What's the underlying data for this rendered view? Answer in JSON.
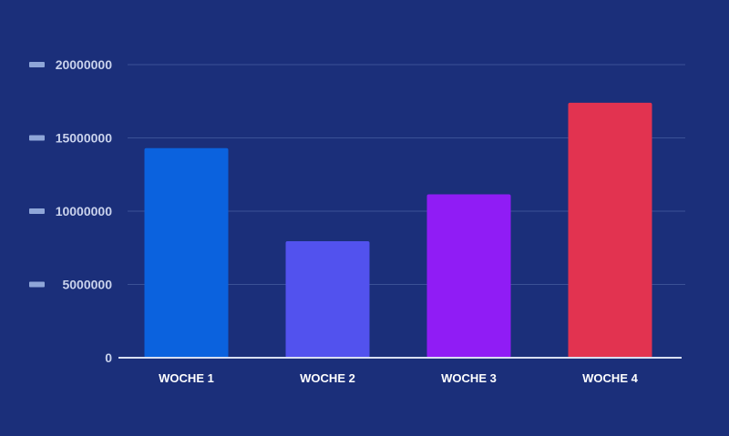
{
  "colors": {
    "background": "#1b2f7a",
    "grid": "#3b5196",
    "tick_marker": "#8fa6d8",
    "axis": "#d8dff2"
  },
  "chart_data": {
    "type": "bar",
    "categories": [
      "WOCHE 1",
      "WOCHE 2",
      "WOCHE 3",
      "WOCHE 4"
    ],
    "values": [
      14300000,
      7950000,
      11150000,
      17400000
    ],
    "bar_colors": [
      "#0b62de",
      "#5252ee",
      "#901cf5",
      "#e23350"
    ],
    "y_ticks": [
      "0",
      "5000000",
      "10000000",
      "15000000",
      "20000000"
    ],
    "ylim": [
      0,
      20000000
    ],
    "grid": true,
    "legend": "none"
  }
}
